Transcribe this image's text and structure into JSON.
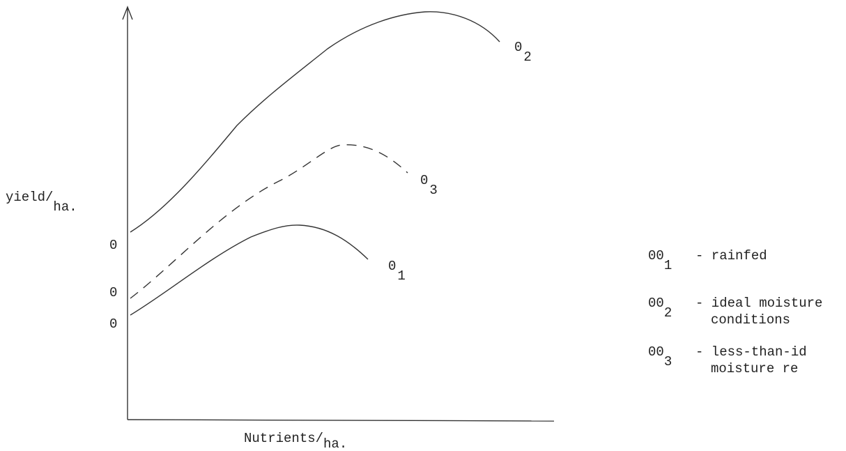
{
  "axes": {
    "y_label": {
      "main": "yield/",
      "sub": "ha."
    },
    "x_label": {
      "main": "Nutrients/",
      "sub": "ha."
    },
    "y_markers": [
      "0",
      "0",
      "0"
    ]
  },
  "curves": [
    {
      "label": "0",
      "subscript": "2"
    },
    {
      "label": "0",
      "subscript": "3"
    },
    {
      "label": "0",
      "subscript": "1"
    }
  ],
  "legend": [
    {
      "symbol": "00",
      "subscript": "1",
      "lines": [
        "- rainfed"
      ]
    },
    {
      "symbol": "00",
      "subscript": "2",
      "lines": [
        "- ideal moisture",
        "conditions"
      ]
    },
    {
      "symbol": "00",
      "subscript": "3",
      "lines": [
        "- less-than-id",
        "moisture re"
      ]
    }
  ]
}
